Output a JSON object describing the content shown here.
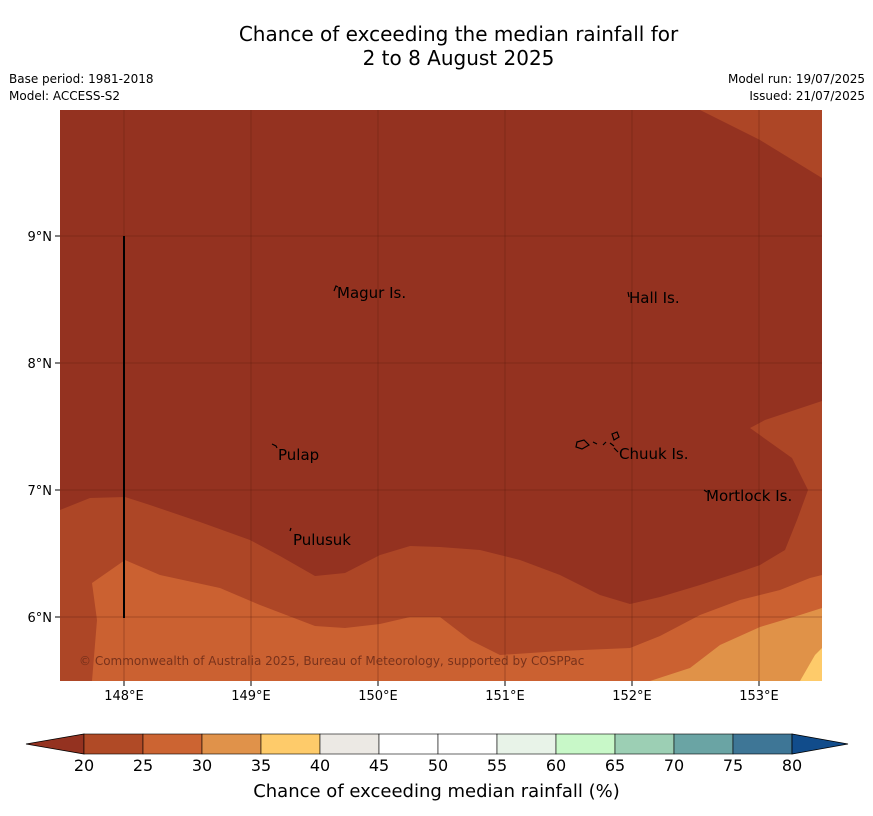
{
  "header": {
    "title_line1": "Chance of exceeding the median rainfall for",
    "title_line2": "2 to 8 August 2025",
    "base_period": "Base period: 1981-2018",
    "model": "Model: ACCESS-S2",
    "model_run": "Model run: 19/07/2025",
    "issued": "Issued: 21/07/2025"
  },
  "map": {
    "lon_labels": [
      "148°E",
      "149°E",
      "150°E",
      "151°E",
      "152°E",
      "153°E"
    ],
    "lat_labels": [
      "9°N",
      "8°N",
      "7°N",
      "6°N"
    ],
    "places": [
      "Magur Is.",
      "Hall Is.",
      "Pulap",
      "Chuuk Is.",
      "Mortlock Is.",
      "Pulusuk"
    ],
    "copyright": "© Commonwealth of Australia 2025, Bureau of Meteorology, supported by COSPPac"
  },
  "legend": {
    "ticks": [
      "20",
      "25",
      "30",
      "35",
      "40",
      "45",
      "50",
      "55",
      "60",
      "65",
      "70",
      "75",
      "80"
    ],
    "title": "Chance of exceeding median rainfall (%)",
    "colors": [
      "#943220",
      "#b04a26",
      "#cc6432",
      "#e0924a",
      "#fecb6a",
      "#ece9e4",
      "#ffffff",
      "#ffffff",
      "#e8f3e8",
      "#c8f8c8",
      "#9ccfb4",
      "#6aa4a4",
      "#3e7696",
      "#114c8b"
    ]
  }
}
